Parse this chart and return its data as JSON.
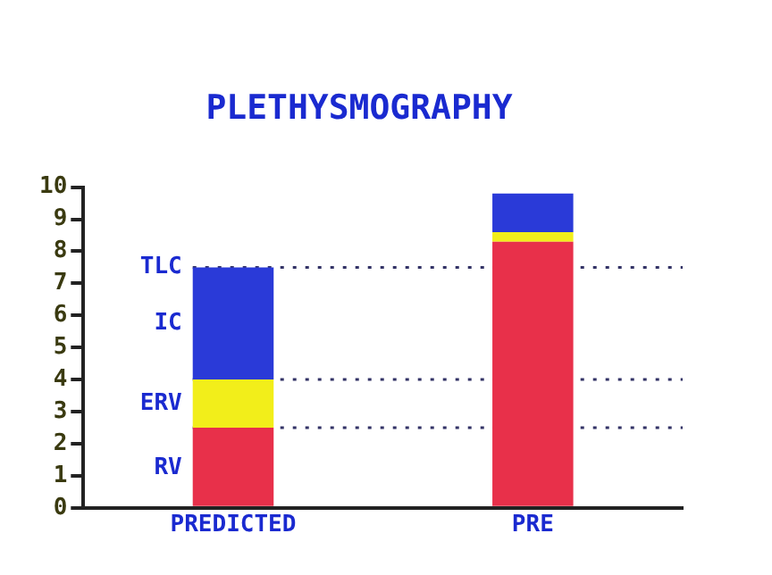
{
  "chart_data": {
    "type": "bar",
    "title": "PLETHYSMOGRAPHY",
    "stacked": true,
    "categories": [
      "PREDICTED",
      "PRE"
    ],
    "series": [
      {
        "name": "RV",
        "color": "#e8304a",
        "values": [
          2.5,
          8.3
        ]
      },
      {
        "name": "ERV",
        "color": "#f2ee1a",
        "values": [
          1.5,
          0.3
        ]
      },
      {
        "name": "IC",
        "color": "#2a3ad8",
        "values": [
          3.5,
          1.2
        ]
      }
    ],
    "ylim": [
      0,
      10
    ],
    "yticks": [
      0,
      1,
      2,
      3,
      4,
      5,
      6,
      7,
      8,
      9,
      10
    ],
    "grid": false,
    "legend": false,
    "ref_lines": [
      {
        "axis": "y",
        "value": 7.5,
        "label": "TLC",
        "line_style": "dotted",
        "color": "#333366"
      },
      {
        "axis": "y",
        "value": 4,
        "line_style": "dotted",
        "color": "#333366"
      },
      {
        "axis": "y",
        "value": 2.5,
        "line_style": "dotted",
        "color": "#333366"
      }
    ]
  }
}
